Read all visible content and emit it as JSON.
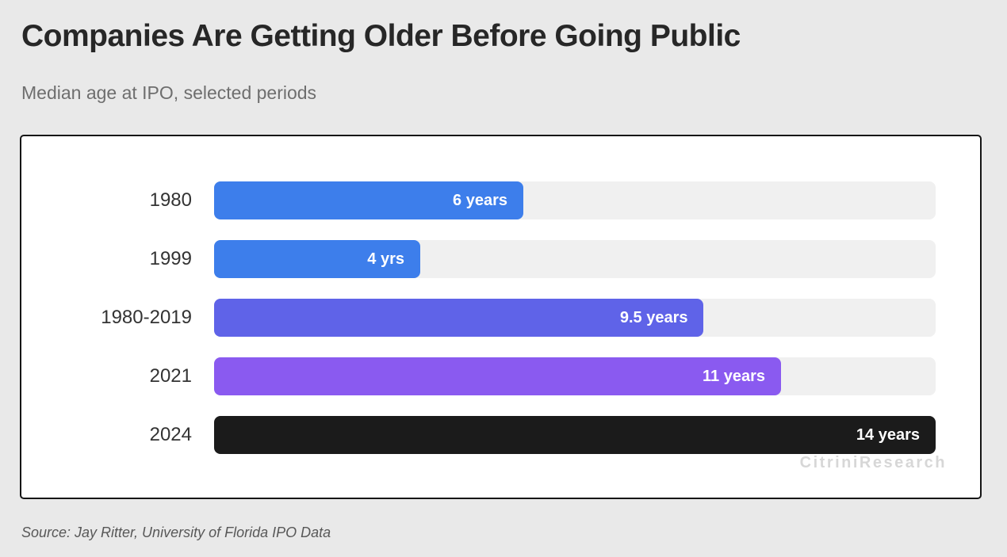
{
  "header": {
    "title": "Companies Are Getting Older Before Going Public",
    "subtitle": "Median age at IPO, selected periods"
  },
  "chart_data": {
    "type": "bar",
    "orientation": "horizontal",
    "title": "Companies Are Getting Older Before Going Public",
    "subtitle": "Median age at IPO, selected periods",
    "categories": [
      "1980",
      "1999",
      "1980-2019",
      "2021",
      "2024"
    ],
    "values": [
      6,
      4,
      9.5,
      11,
      14
    ],
    "value_labels": [
      "6 years",
      "4 yrs",
      "9.5 years",
      "11 years",
      "14 years"
    ],
    "bar_colors": [
      "#3d7eeb",
      "#3d7eeb",
      "#5f63e8",
      "#8a5af0",
      "#1b1b1b"
    ],
    "track_color": "#f0f0f0",
    "xlabel": "",
    "ylabel": "",
    "xlim": [
      0,
      14
    ],
    "grid": false,
    "legend": false,
    "value_label_position": "inside-end"
  },
  "watermark": "CitriniResearch",
  "footer": {
    "source": "Source: Jay Ritter, University of Florida IPO Data"
  }
}
